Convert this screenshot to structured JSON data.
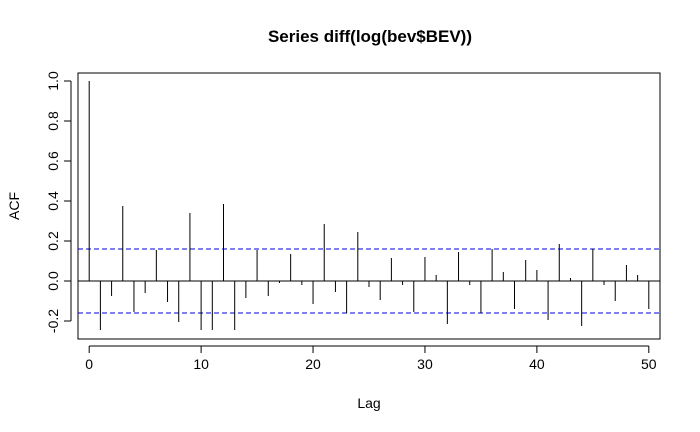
{
  "chart_data": {
    "type": "bar",
    "title": "Series  diff(log(bev$BEV))",
    "xlabel": "Lag",
    "ylabel": "ACF",
    "xlim": [
      -1,
      51
    ],
    "ylim": [
      -0.29,
      1.04
    ],
    "x_ticks": [
      0,
      10,
      20,
      30,
      40,
      50
    ],
    "y_ticks": [
      -0.2,
      0.0,
      0.2,
      0.4,
      0.6,
      0.8,
      1.0
    ],
    "x_tick_labels": [
      "0",
      "10",
      "20",
      "30",
      "40",
      "50"
    ],
    "y_tick_labels": [
      "-0.2",
      "0.0",
      "0.2",
      "0.4",
      "0.6",
      "0.8",
      "1.0"
    ],
    "lags": [
      0,
      1,
      2,
      3,
      4,
      5,
      6,
      7,
      8,
      9,
      10,
      11,
      12,
      13,
      14,
      15,
      16,
      17,
      18,
      19,
      20,
      21,
      22,
      23,
      24,
      25,
      26,
      27,
      28,
      29,
      30,
      31,
      32,
      33,
      34,
      35,
      36,
      37,
      38,
      39,
      40,
      41,
      42,
      43,
      44,
      45,
      46,
      47,
      48,
      49,
      50
    ],
    "acf": [
      1.0,
      -0.245,
      -0.075,
      0.375,
      -0.155,
      -0.06,
      0.155,
      -0.105,
      -0.205,
      0.34,
      -0.245,
      -0.245,
      0.385,
      -0.245,
      -0.085,
      0.155,
      -0.075,
      -0.01,
      0.135,
      -0.02,
      -0.115,
      0.285,
      -0.055,
      -0.16,
      0.245,
      -0.03,
      -0.095,
      0.115,
      -0.02,
      -0.155,
      0.12,
      0.03,
      -0.215,
      0.145,
      -0.02,
      -0.16,
      0.16,
      0.045,
      -0.14,
      0.105,
      0.055,
      -0.195,
      0.185,
      0.015,
      -0.225,
      0.16,
      -0.02,
      -0.1,
      0.08,
      0.03,
      -0.14
    ],
    "confidence_bound": 0.16,
    "colors": {
      "bars": "#000000",
      "confidence_lines": "#0000cc",
      "zero_line": "#000000"
    }
  }
}
